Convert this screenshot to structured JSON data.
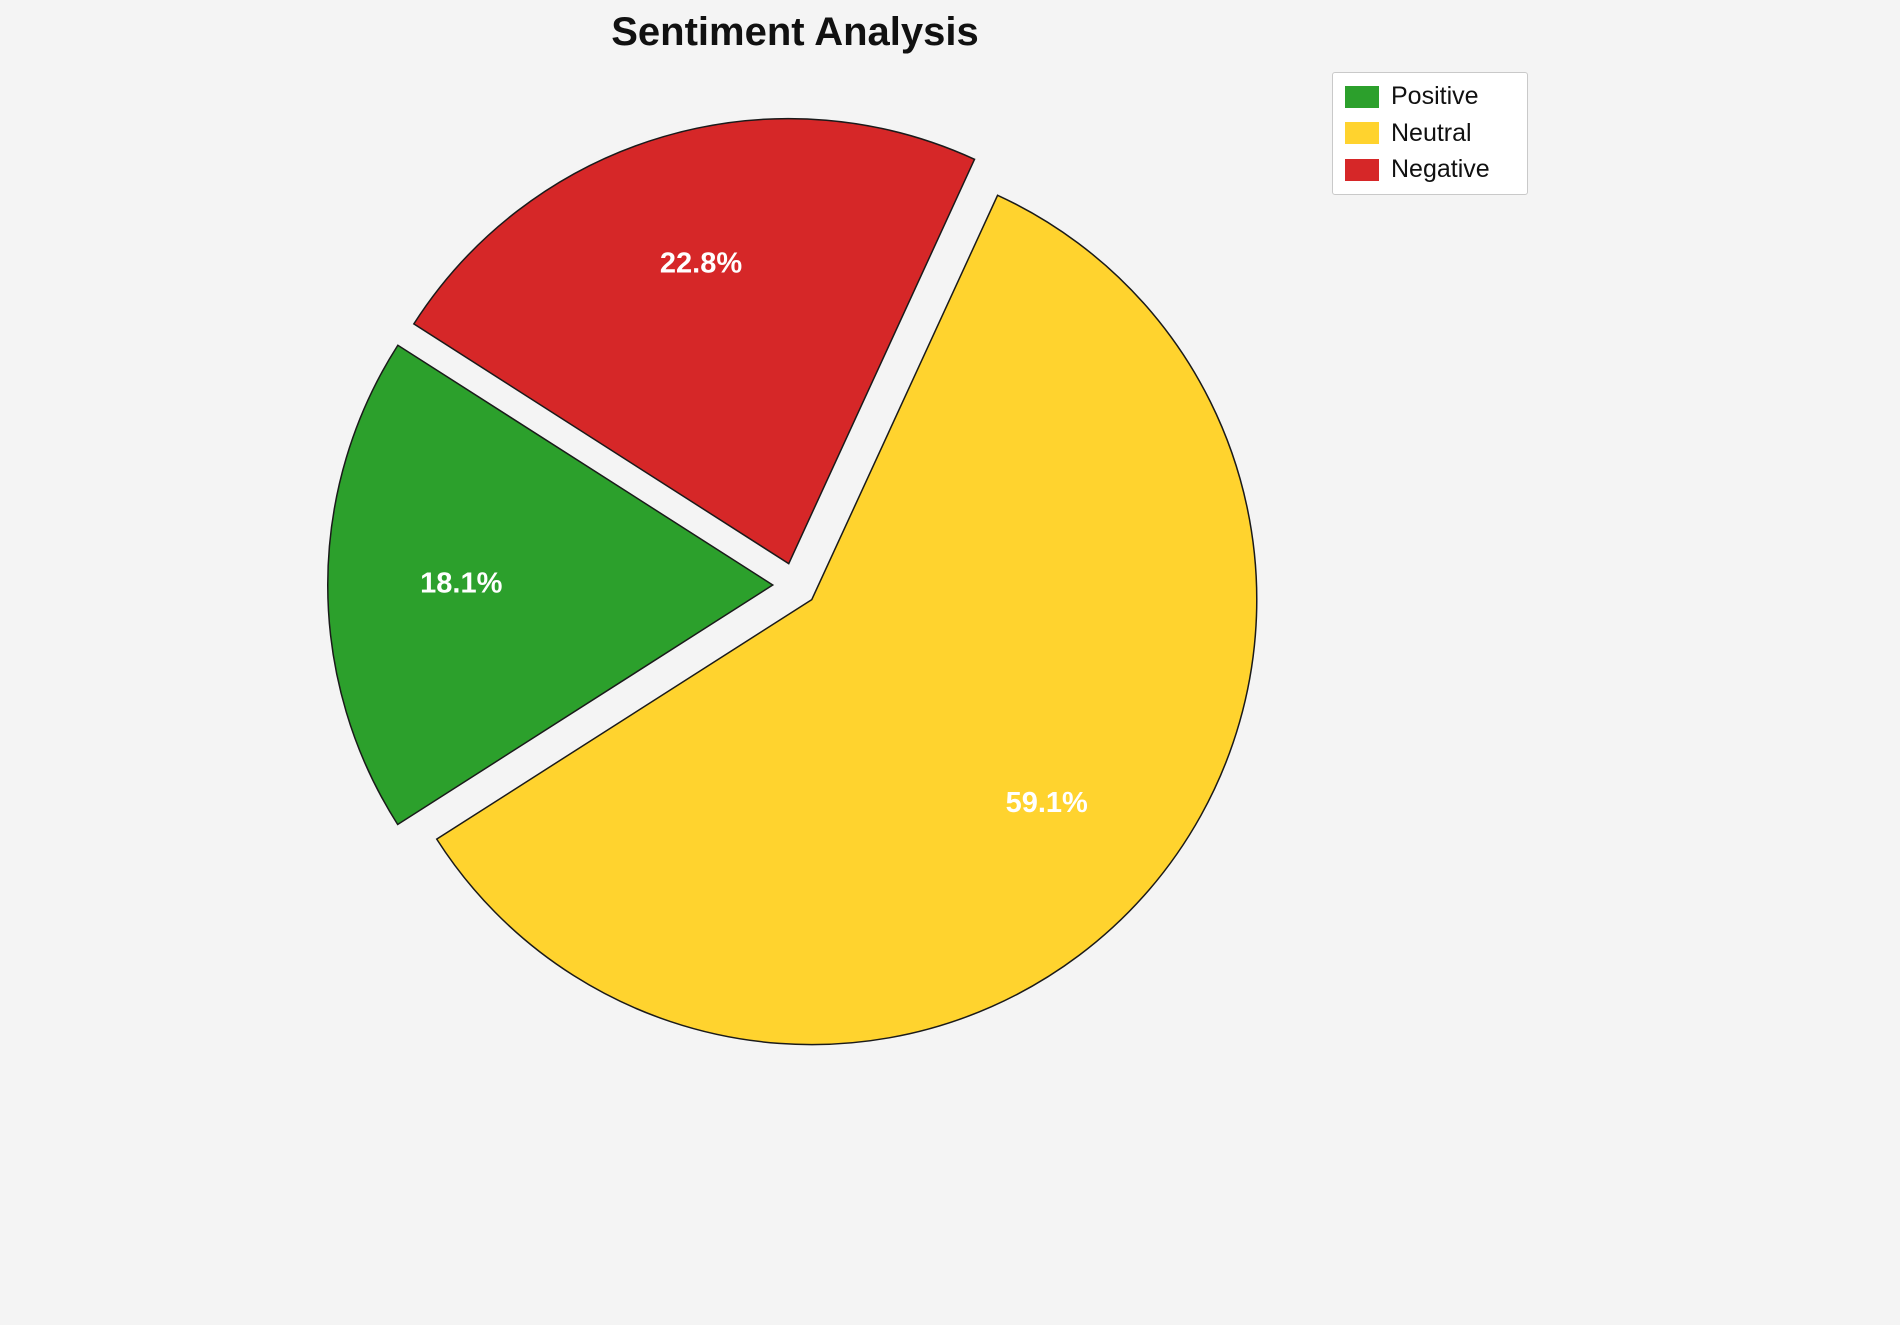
{
  "title": "Sentiment Analysis",
  "background_color": "#f4f4f4",
  "chart_data": {
    "type": "pie",
    "title": "Sentiment Analysis",
    "labels": [
      "Positive",
      "Neutral",
      "Negative"
    ],
    "values": [
      18.1,
      59.1,
      22.8
    ],
    "value_labels": [
      "18.1%",
      "59.1%",
      "22.8%"
    ],
    "colors": [
      "#2ca02c",
      "#ffd32e",
      "#d62728"
    ],
    "edge_color": "#1a1a1a",
    "label_color": "#ffffff",
    "start_angle": 147.4,
    "direction": "counterclockwise",
    "explode": [
      0.05,
      0.05,
      0.05
    ],
    "legend_position": "upper right",
    "legend_entries": [
      "Positive",
      "Neutral",
      "Negative"
    ],
    "grid": false
  }
}
